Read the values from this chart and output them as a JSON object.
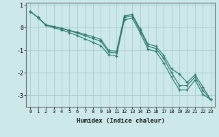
{
  "xlabel": "Humidex (Indice chaleur)",
  "bg_color": "#cce8e8",
  "line_color": "#2d7d6e",
  "grid_color": "#aacccc",
  "x": [
    0,
    1,
    2,
    3,
    4,
    5,
    6,
    7,
    8,
    9,
    10,
    11,
    12,
    13,
    14,
    15,
    16,
    17,
    18,
    19,
    20,
    21,
    22,
    23
  ],
  "line1": [
    0.72,
    0.45,
    0.12,
    0.05,
    -0.02,
    -0.12,
    -0.2,
    -0.3,
    -0.4,
    -0.52,
    -1.0,
    -1.05,
    0.52,
    0.58,
    -0.05,
    -0.72,
    -0.82,
    -1.22,
    -1.82,
    -2.05,
    -2.42,
    -2.08,
    -2.62,
    -3.18
  ],
  "line2": [
    0.72,
    0.45,
    0.12,
    0.04,
    -0.04,
    -0.14,
    -0.24,
    -0.36,
    -0.48,
    -0.6,
    -1.08,
    -1.12,
    0.45,
    0.52,
    -0.12,
    -0.82,
    -0.92,
    -1.35,
    -1.98,
    -2.55,
    -2.55,
    -2.18,
    -2.78,
    -3.18
  ],
  "line3": [
    0.72,
    0.44,
    0.1,
    0.0,
    -0.1,
    -0.22,
    -0.35,
    -0.5,
    -0.65,
    -0.8,
    -1.2,
    -1.25,
    0.35,
    0.42,
    -0.22,
    -0.95,
    -1.05,
    -1.55,
    -2.18,
    -2.75,
    -2.75,
    -2.32,
    -2.95,
    -3.18
  ],
  "ylim": [
    -3.5,
    1.1
  ],
  "xlim": [
    -0.5,
    23.5
  ],
  "yticks": [
    1,
    0,
    -1,
    -2,
    -3
  ],
  "xticks": [
    0,
    1,
    2,
    3,
    4,
    5,
    6,
    7,
    8,
    9,
    10,
    11,
    12,
    13,
    14,
    15,
    16,
    17,
    18,
    19,
    20,
    21,
    22,
    23
  ]
}
